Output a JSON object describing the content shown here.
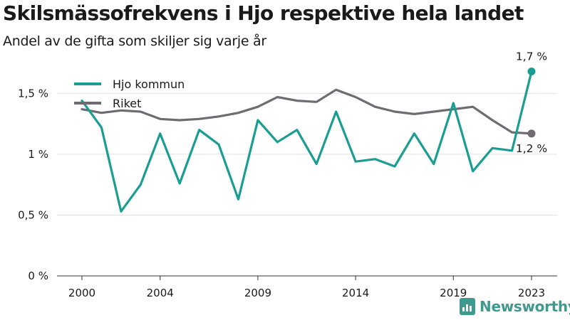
{
  "title": "Skilsmässofrekvens i Hjo respektive hela landet",
  "subtitle": "Andel av de gifta som skiljer sig varje år",
  "brand": {
    "name": "Newsworthy",
    "icon": "newsworthy-logo-icon"
  },
  "colors": {
    "hjo": "#1a9e92",
    "riket": "#6e6c72",
    "grid": "#e2e2e2",
    "axis": "#333333",
    "brand": "#3e9a8d"
  },
  "chart_data": {
    "type": "line",
    "title": "Skilsmässofrekvens i Hjo respektive hela landet",
    "subtitle": "Andel av de gifta som skiljer sig varje år",
    "xlabel": "",
    "ylabel": "",
    "x": [
      2000,
      2001,
      2002,
      2003,
      2004,
      2005,
      2006,
      2007,
      2008,
      2009,
      2010,
      2011,
      2012,
      2013,
      2014,
      2015,
      2016,
      2017,
      2018,
      2019,
      2020,
      2021,
      2022,
      2023
    ],
    "x_ticks": [
      2000,
      2004,
      2009,
      2014,
      2019,
      2023
    ],
    "x_tick_labels": [
      "2000",
      "2004",
      "2009",
      "2014",
      "2019",
      "2023"
    ],
    "ylim": [
      0,
      1.8
    ],
    "y_ticks": [
      0,
      0.5,
      1,
      1.5
    ],
    "y_tick_labels": [
      "0 %",
      "0,5 %",
      "1 %",
      "1,5 %"
    ],
    "grid": "horizontal",
    "legend": "top-left",
    "series": [
      {
        "name": "Hjo kommun",
        "color": "#1a9e92",
        "values": [
          1.44,
          1.22,
          0.53,
          0.75,
          1.17,
          0.76,
          1.2,
          1.08,
          0.63,
          1.28,
          1.1,
          1.2,
          0.92,
          1.35,
          0.94,
          0.96,
          0.9,
          1.17,
          0.92,
          1.42,
          0.86,
          1.05,
          1.03,
          1.68
        ],
        "end_label": "1,7 %"
      },
      {
        "name": "Riket",
        "color": "#6e6c72",
        "values": [
          1.37,
          1.34,
          1.36,
          1.35,
          1.29,
          1.28,
          1.29,
          1.31,
          1.34,
          1.39,
          1.47,
          1.44,
          1.43,
          1.53,
          1.47,
          1.39,
          1.35,
          1.33,
          1.35,
          1.37,
          1.39,
          1.28,
          1.18,
          1.17
        ],
        "end_label": "1,2 %"
      }
    ]
  }
}
